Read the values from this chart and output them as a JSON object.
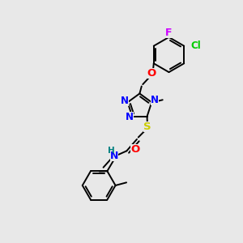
{
  "bg_color": "#e8e8e8",
  "figsize": [
    3.0,
    3.0
  ],
  "dpi": 100,
  "bond_color": "#000000",
  "lw": 1.4,
  "F_color": "#cc00ff",
  "Cl_color": "#00cc00",
  "O_color": "#ff0000",
  "N_color": "#0000ff",
  "S_color": "#cccc00",
  "H_color": "#008080",
  "C_color": "#000000",
  "xlim": [
    0,
    10
  ],
  "ylim": [
    0,
    10
  ]
}
